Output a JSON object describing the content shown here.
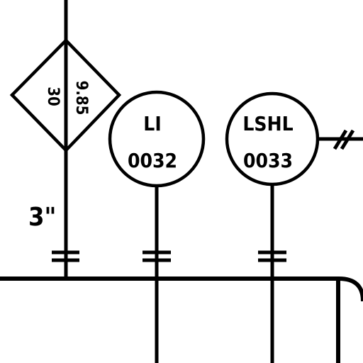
{
  "diagram": {
    "type": "P&ID instrument detail",
    "colors": {
      "line": "#000000",
      "background": "#ffffff"
    },
    "diamond_symbol": {
      "left_value": "30",
      "right_value": "9.85"
    },
    "line_size": "3\"",
    "instruments": [
      {
        "function": "LI",
        "number": "0032"
      },
      {
        "function": "LSHL",
        "number": "0033"
      }
    ],
    "signal_type": "electric signal (double hash)"
  }
}
